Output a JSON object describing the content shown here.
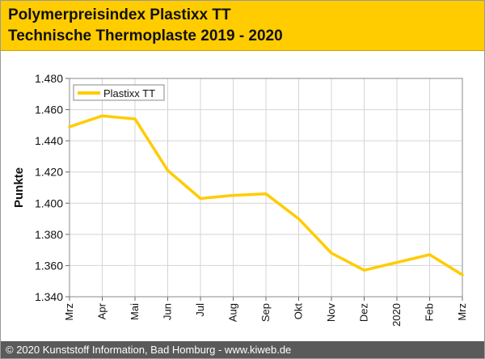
{
  "header": {
    "line1": "Polymerpreisindex Plastixx TT",
    "line2": "Technische Thermoplaste 2019 - 2020"
  },
  "footer": {
    "text": "© 2020 Kunststoff Information, Bad Homburg - www.kiweb.de"
  },
  "colors": {
    "brand": "#ffcc00",
    "series": "#ffcc00",
    "footer_bg": "#5a5a5a"
  },
  "chart_data": {
    "type": "line",
    "title": "",
    "xlabel": "",
    "ylabel": "Punkte",
    "categories": [
      "Mrz",
      "Apr",
      "Mai",
      "Jun",
      "Jul",
      "Aug",
      "Sep",
      "Okt",
      "Nov",
      "Dez",
      "2020",
      "Feb",
      "Mrz"
    ],
    "series": [
      {
        "name": "Plastixx TT",
        "values": [
          1449,
          1456,
          1454,
          1421,
          1403,
          1405,
          1406,
          1390,
          1368,
          1357,
          1362,
          1367,
          1354
        ]
      }
    ],
    "ylim": [
      1340,
      1480
    ],
    "yticks": [
      1340,
      1360,
      1380,
      1400,
      1420,
      1440,
      1460,
      1480
    ],
    "ytick_labels": [
      "1.340",
      "1.360",
      "1.380",
      "1.400",
      "1.420",
      "1.440",
      "1.460",
      "1.480"
    ],
    "grid": true,
    "legend": "top-left"
  }
}
